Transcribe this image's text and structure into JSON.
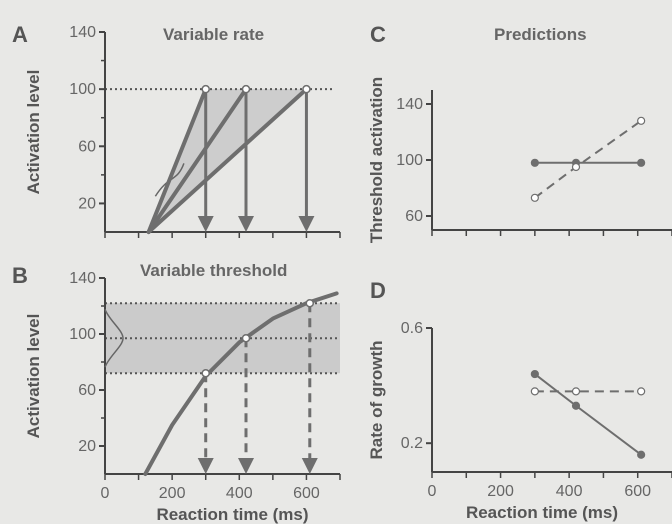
{
  "panels": {
    "A": {
      "label": "A",
      "title": "Variable rate"
    },
    "B": {
      "label": "B",
      "title": "Variable threshold"
    },
    "C": {
      "label": "C",
      "title": "Predictions"
    },
    "D": {
      "label": "D",
      "title": ""
    }
  },
  "colors": {
    "line": "#6e6e6e",
    "shade": "#c8c8c8",
    "text": "#555555"
  },
  "chart_data": [
    {
      "type": "line",
      "panel": "A",
      "title": "Variable rate",
      "xlabel": "",
      "ylabel": "Activation level",
      "xlim": [
        0,
        700
      ],
      "ylim": [
        0,
        140
      ],
      "yticks": [
        20,
        60,
        100,
        140
      ],
      "threshold": 100,
      "series": [
        {
          "x": [
            130,
            300
          ],
          "y": [
            0,
            100
          ]
        },
        {
          "x": [
            130,
            420
          ],
          "y": [
            0,
            100
          ]
        },
        {
          "x": [
            130,
            600
          ],
          "y": [
            0,
            100
          ]
        }
      ],
      "response_times": [
        300,
        420,
        600
      ]
    },
    {
      "type": "line",
      "panel": "B",
      "title": "Variable threshold",
      "xlabel": "Reaction time (ms)",
      "ylabel": "Activation level",
      "xlim": [
        0,
        700
      ],
      "ylim": [
        0,
        140
      ],
      "xticks": [
        0,
        200,
        400,
        600
      ],
      "yticks": [
        20,
        60,
        100,
        140
      ],
      "thresholds": [
        72,
        97,
        122
      ],
      "series": [
        {
          "x": [
            120,
            200,
            300,
            400,
            500,
            600,
            690
          ],
          "y": [
            0,
            35,
            70,
            94,
            111,
            122,
            129
          ]
        }
      ],
      "response_times": [
        300,
        420,
        610
      ]
    },
    {
      "type": "line",
      "panel": "C",
      "title": "Predictions",
      "xlabel": "",
      "ylabel": "Threshold activation",
      "xlim": [
        0,
        700
      ],
      "ylim": [
        50,
        150
      ],
      "yticks": [
        60,
        100,
        140
      ],
      "series": [
        {
          "style": "solid",
          "marker": "filled",
          "x": [
            300,
            420,
            610
          ],
          "y": [
            98,
            98,
            98
          ]
        },
        {
          "style": "dashed",
          "marker": "open",
          "x": [
            300,
            420,
            610
          ],
          "y": [
            73,
            95,
            128
          ]
        }
      ]
    },
    {
      "type": "line",
      "panel": "D",
      "title": "",
      "xlabel": "Reaction time (ms)",
      "ylabel": "Rate of growth",
      "xlim": [
        0,
        700
      ],
      "ylim": [
        0.1,
        0.6
      ],
      "xticks": [
        0,
        200,
        400,
        600
      ],
      "yticks": [
        0.2,
        0.6
      ],
      "series": [
        {
          "style": "solid",
          "marker": "filled",
          "x": [
            300,
            420,
            610
          ],
          "y": [
            0.44,
            0.33,
            0.16
          ]
        },
        {
          "style": "dashed",
          "marker": "open",
          "x": [
            300,
            420,
            610
          ],
          "y": [
            0.38,
            0.38,
            0.38
          ]
        }
      ]
    }
  ]
}
